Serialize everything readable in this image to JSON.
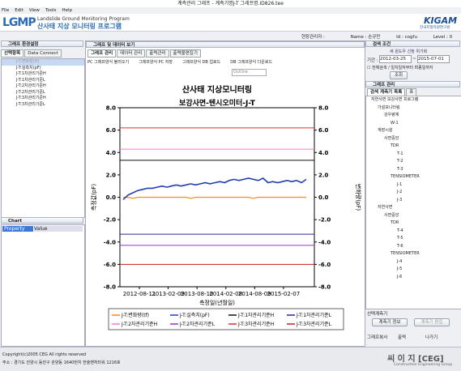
{
  "window": {
    "title": "계측관리 그래프 - 계측기명J-T 그래프명.ID826.tee",
    "menu": [
      "File",
      "Edit",
      "View",
      "Tools",
      "Help"
    ]
  },
  "header": {
    "logo": "LGMP",
    "subtitle_en": "Landslide Ground Monitoring Program",
    "subtitle_ko": "산사태 지상 모니터링 프로그램",
    "brand": "KIGAM",
    "brand_sub": "한국지질자원연구원"
  },
  "user": {
    "manager": "현장관리자 :",
    "name_label": "Name :",
    "name": "손규민",
    "id_label": "Id :",
    "id": "cogfu",
    "level_label": "Level :",
    "level": "0"
  },
  "left": {
    "title": "그래프 환경설정",
    "tabs": [
      "선택항목",
      "Data Connect"
    ],
    "items": [
      "J-T:변화량(tf)",
      "J-T:실측치(pF)",
      "J-T:1차관리기준H",
      "J-T:1차관리기준L",
      "J-T:2차관리기준H",
      "J-T:2차관리기준L",
      "J-T:3차관리기준H",
      "J-T:3차관리기준L"
    ],
    "props_title": "Chart",
    "props_cols": [
      "Property",
      "Value"
    ]
  },
  "center": {
    "title": "그래프 및 데이터 보기",
    "tabs": [
      "그래프 관리",
      "데이터 관리",
      "출력관리",
      "출력물편집기"
    ],
    "tools": [
      "PC 그래프양식 불러오기",
      "그래프양식 PC 저장",
      "그래프양식 DB 업로드",
      "DB 그래프양식 다운로드"
    ],
    "font_box": "Outline"
  },
  "right": {
    "search_title": "검색 조건",
    "new_label": "새 윈도우 신청 위기화",
    "period_label": "기간 :",
    "date_from": "2012-03-25",
    "date_to": "2015-07-01",
    "check": "전체검색 / 일치일자부터 최종일까지",
    "search_btn": "조회",
    "tree_title": "그래프 관리",
    "tree_tabs": [
      "검색 계측기 목록",
      "표"
    ],
    "tree": [
      [
        0,
        "자연사면 보강사면 프로그램"
      ],
      [
        1,
        "가설모니터링"
      ],
      [
        2,
        "강우량계"
      ],
      [
        3,
        "W-1"
      ],
      [
        1,
        "계장시설"
      ],
      [
        2,
        "사면중앙"
      ],
      [
        3,
        "TDR"
      ],
      [
        4,
        "T-1"
      ],
      [
        4,
        "T-2"
      ],
      [
        4,
        "T-3"
      ],
      [
        3,
        "TENSIOMETER"
      ],
      [
        4,
        "J-1"
      ],
      [
        4,
        "J-2"
      ],
      [
        4,
        "J-3"
      ],
      [
        1,
        "자연사면"
      ],
      [
        2,
        "사면중앙"
      ],
      [
        3,
        "TDR"
      ],
      [
        4,
        "T-4"
      ],
      [
        4,
        "T-5"
      ],
      [
        4,
        "T-6"
      ],
      [
        3,
        "TENSIOMETER"
      ],
      [
        4,
        "J-4"
      ],
      [
        4,
        "J-5"
      ],
      [
        4,
        "J-6"
      ]
    ],
    "selected_title": "선택계측기",
    "info_btn": "계측기 정보",
    "edit_btn": "계측기 편집",
    "buttons": [
      "그래프복사",
      "출력",
      "나가기"
    ]
  },
  "footer": {
    "copyright": "Copyright(c)2005 CEG All rights reserved",
    "address": "주소 : 경기도 안양시 동안구 관양동 1640번지 한술벤처타워 1216호",
    "company": "씨 이 지 [CEG]",
    "company_sub": "Construction Engineering Group"
  },
  "chart_data": {
    "type": "line",
    "title": "산사태 지상모니터링",
    "subtitle": "보강사면-텐시오미터-J-T",
    "x_label": "측정일(년월일)",
    "y_label": "측정값(pF)",
    "y2_label": "변화량(pF)",
    "xlim": [
      "2012-04-10",
      "2015-08-21"
    ],
    "xticks": [
      "2012-08-11",
      "2013-02-09",
      "2013-08-10",
      "2014-02-08",
      "2014-08-09",
      "2015-02-07"
    ],
    "ylim": [
      -8,
      8
    ],
    "yticks": [
      {
        "value": -8,
        "label": "-8.0"
      },
      {
        "value": -6,
        "label": "-6.0"
      },
      {
        "value": -4,
        "label": "-4.0"
      },
      {
        "value": -2,
        "label": "-2.0"
      },
      {
        "value": 0,
        "label": "0.0"
      },
      {
        "value": 2,
        "label": "2.0"
      },
      {
        "value": 4,
        "label": "4.0"
      },
      {
        "value": 6,
        "label": "6.0"
      },
      {
        "value": 8,
        "label": "8.0"
      }
    ],
    "y2lim": [
      -8,
      8
    ],
    "y2ticks": [
      {
        "value": -8,
        "label": "-8.0"
      },
      {
        "value": -6,
        "label": "-6.0"
      },
      {
        "value": -4,
        "label": "-4.0"
      },
      {
        "value": -2,
        "label": "-2.0"
      },
      {
        "value": 0,
        "label": "0.0"
      },
      {
        "value": 2,
        "label": "2.0"
      },
      {
        "value": 4,
        "label": "4.0"
      },
      {
        "value": 6,
        "label": "6.0"
      },
      {
        "value": 8,
        "label": "8.0"
      }
    ],
    "x": [
      "2012-05-01",
      "2012-06-01",
      "2012-07-01",
      "2012-08-01",
      "2012-09-01",
      "2012-10-01",
      "2012-11-01",
      "2012-12-01",
      "2013-01-01",
      "2013-02-01",
      "2013-03-01",
      "2013-04-01",
      "2013-05-01",
      "2013-06-01",
      "2013-07-01",
      "2013-08-01",
      "2013-09-01",
      "2013-10-01",
      "2013-11-01",
      "2013-12-01",
      "2014-01-01",
      "2014-02-01",
      "2014-03-01",
      "2014-04-01",
      "2014-05-01",
      "2014-06-01",
      "2014-07-01",
      "2014-08-01",
      "2014-09-01",
      "2014-10-01",
      "2014-11-01",
      "2014-12-01",
      "2015-01-01",
      "2015-02-01",
      "2015-03-01",
      "2015-04-01",
      "2015-05-01",
      "2015-06-01",
      "2015-07-01"
    ],
    "series": [
      {
        "name": "J-T:변화량(tf)",
        "color": "#f28c1c",
        "axis": "y2",
        "values": [
          0,
          0,
          -0.1,
          0,
          0,
          0,
          0,
          0,
          0,
          0,
          0,
          0,
          0,
          0,
          -0.1,
          0,
          0,
          0,
          0,
          0,
          0,
          0,
          0,
          0,
          0,
          0,
          0,
          -0.1,
          0,
          0,
          0,
          0,
          0,
          0,
          0,
          0,
          0,
          0,
          0
        ]
      },
      {
        "name": "J-T:실측치(pF)",
        "color": "#1f3fb0",
        "values": [
          -0.2,
          0.2,
          0.4,
          0.6,
          0.7,
          0.8,
          0.8,
          0.9,
          1.0,
          0.9,
          1.0,
          1.1,
          1.0,
          1.1,
          1.2,
          1.1,
          1.2,
          1.3,
          1.2,
          1.3,
          1.4,
          1.3,
          1.5,
          1.6,
          1.5,
          1.6,
          1.7,
          1.6,
          1.5,
          1.7,
          1.3,
          1.4,
          1.3,
          1.4,
          1.5,
          1.4,
          1.5,
          1.3,
          1.6
        ]
      }
    ],
    "thresholds": [
      {
        "name": "J-T:1차관리기준H",
        "color": "#111111",
        "value": 3.3
      },
      {
        "name": "J-T:1차관리기준L",
        "color": "#2a2a8a",
        "value": -3.3
      },
      {
        "name": "J-T:2차관리기준H",
        "color": "#ff77cc",
        "value": 4.3
      },
      {
        "name": "J-T:2차관리기준L",
        "color": "#9933cc",
        "value": -4.3
      },
      {
        "name": "J-T:3차관리기준H",
        "color": "#e03030",
        "value": 6.2
      },
      {
        "name": "J-T:3차관리기준L",
        "color": "#c02020",
        "value": -6.0
      }
    ]
  }
}
